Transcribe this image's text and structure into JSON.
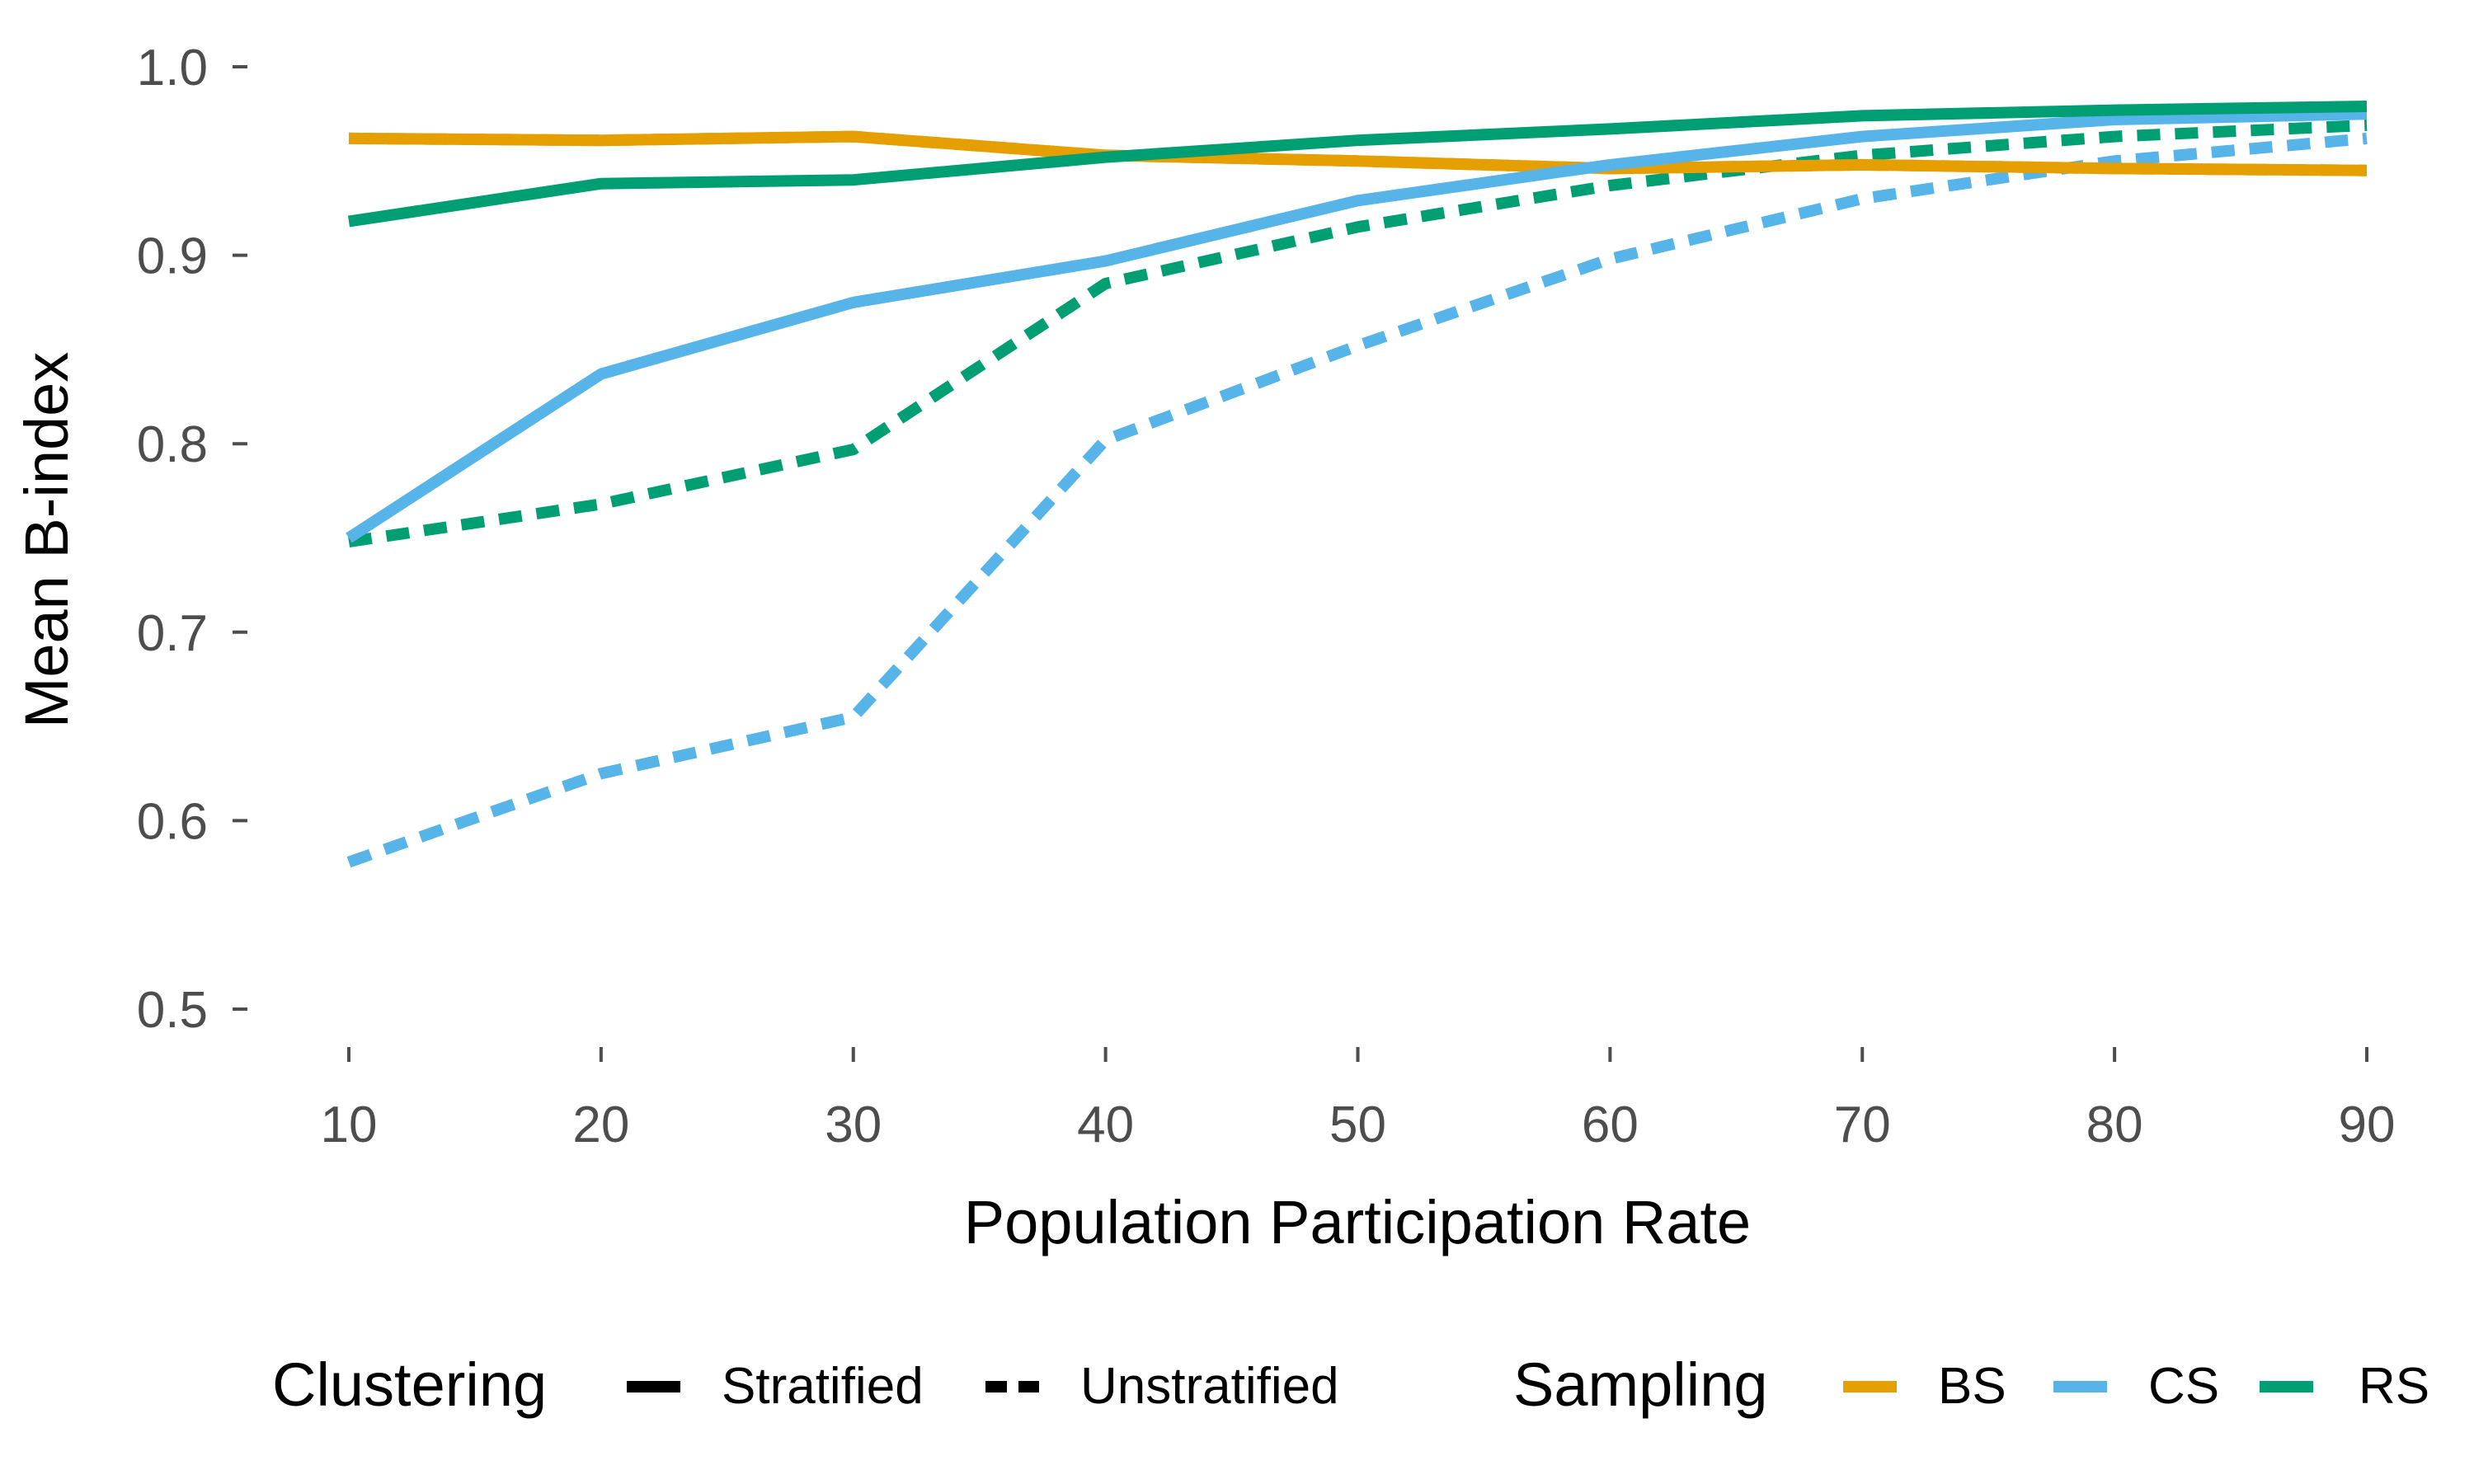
{
  "colors": {
    "BS": "#E69F00",
    "CS": "#56B4E9",
    "RS": "#009E73"
  },
  "chart_data": {
    "type": "line",
    "xlabel": "Population Participation Rate",
    "ylabel": "Mean B-index",
    "x": [
      10,
      20,
      30,
      40,
      50,
      60,
      70,
      80,
      90
    ],
    "xlim": [
      10,
      90
    ],
    "ylim": [
      0.5,
      1.0
    ],
    "x_ticks": [
      "10",
      "20",
      "30",
      "40",
      "50",
      "60",
      "70",
      "80",
      "90"
    ],
    "y_ticks": [
      "0.5",
      "0.6",
      "0.7",
      "0.8",
      "0.9",
      "1.0"
    ],
    "grid": false,
    "legend_position": "bottom",
    "series": [
      {
        "name": "BS",
        "clustering": "Stratified",
        "sampling": "BS",
        "values": [
          0.962,
          0.961,
          0.963,
          0.953,
          0.95,
          0.946,
          0.948,
          0.946,
          0.945
        ]
      },
      {
        "name": "BS",
        "clustering": "Unstratified",
        "sampling": "BS",
        "values": [
          0.962,
          0.961,
          0.963,
          0.953,
          0.95,
          0.946,
          0.948,
          0.946,
          0.945
        ]
      },
      {
        "name": "CS",
        "clustering": "Stratified",
        "sampling": "CS",
        "values": [
          0.75,
          0.837,
          0.875,
          0.897,
          0.929,
          0.948,
          0.963,
          0.972,
          0.975
        ]
      },
      {
        "name": "CS",
        "clustering": "Unstratified",
        "sampling": "CS",
        "values": [
          0.578,
          0.625,
          0.655,
          0.802,
          0.852,
          0.898,
          0.93,
          0.95,
          0.962
        ]
      },
      {
        "name": "RS",
        "clustering": "Stratified",
        "sampling": "RS",
        "values": [
          0.918,
          0.938,
          0.94,
          0.952,
          0.961,
          0.967,
          0.974,
          0.977,
          0.979
        ]
      },
      {
        "name": "RS",
        "clustering": "Unstratified",
        "sampling": "RS",
        "values": [
          0.748,
          0.768,
          0.797,
          0.885,
          0.915,
          0.937,
          0.953,
          0.963,
          0.969
        ]
      }
    ]
  },
  "legend": {
    "clustering_title": "Clustering",
    "clustering_items": [
      "Stratified",
      "Unstratified"
    ],
    "sampling_title": "Sampling",
    "sampling_items": [
      "BS",
      "CS",
      "RS"
    ]
  }
}
